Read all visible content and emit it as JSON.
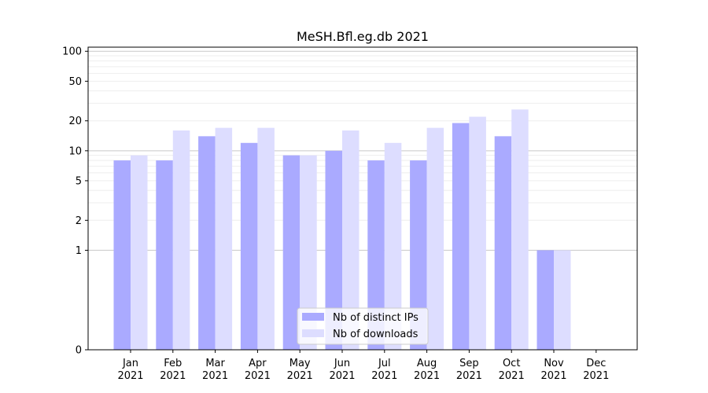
{
  "chart_data": {
    "type": "bar",
    "title": "MeSH.Bfl.eg.db 2021",
    "xlabel": "",
    "ylabel": "",
    "y_scale": "symlog",
    "y_ticks": [
      0,
      1,
      2,
      5,
      10,
      20,
      50,
      100
    ],
    "ylim": [
      0,
      110
    ],
    "grid": "horizontal",
    "legend_position": "lower-center",
    "categories": [
      {
        "month": "Jan",
        "year": "2021"
      },
      {
        "month": "Feb",
        "year": "2021"
      },
      {
        "month": "Mar",
        "year": "2021"
      },
      {
        "month": "Apr",
        "year": "2021"
      },
      {
        "month": "May",
        "year": "2021"
      },
      {
        "month": "Jun",
        "year": "2021"
      },
      {
        "month": "Jul",
        "year": "2021"
      },
      {
        "month": "Aug",
        "year": "2021"
      },
      {
        "month": "Sep",
        "year": "2021"
      },
      {
        "month": "Oct",
        "year": "2021"
      },
      {
        "month": "Nov",
        "year": "2021"
      },
      {
        "month": "Dec",
        "year": "2021"
      }
    ],
    "series": [
      {
        "name": "Nb of distinct IPs",
        "color": "#aaaaff",
        "values": [
          8,
          8,
          14,
          12,
          9,
          10,
          8,
          8,
          19,
          14,
          1,
          0
        ]
      },
      {
        "name": "Nb of downloads",
        "color": "#ddddff",
        "values": [
          9,
          16,
          17,
          17,
          9,
          16,
          12,
          17,
          22,
          26,
          1,
          0
        ]
      }
    ]
  }
}
